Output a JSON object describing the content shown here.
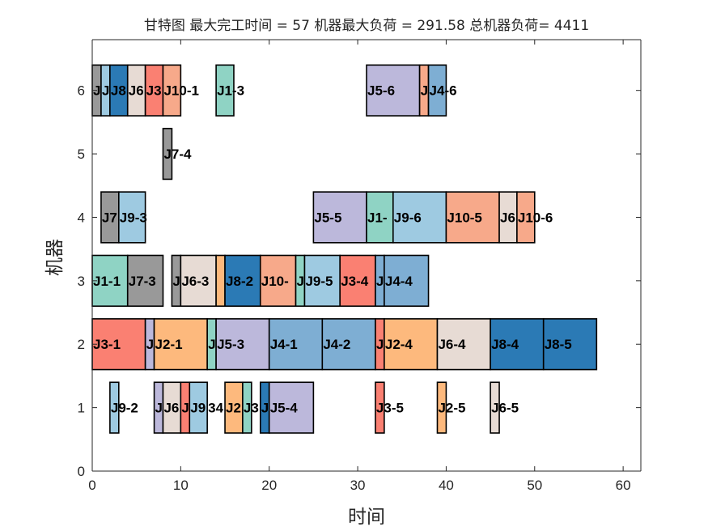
{
  "chart_data": {
    "type": "gantt",
    "title": "甘特图 最大完工时间 = 57 机器最大负荷 = 291.58 总机器负荷= 4411",
    "xlabel": "时间",
    "ylabel": "机器",
    "xlim": [
      0,
      62
    ],
    "ylim": [
      0,
      6.8
    ],
    "xticks": [
      "0",
      "10",
      "20",
      "30",
      "40",
      "50",
      "60"
    ],
    "yticks": [
      "0",
      "1",
      "2",
      "3",
      "4",
      "5",
      "6"
    ],
    "palette": {
      "J1": "#8fd3c4",
      "J2": "#fdb97d",
      "J3": "#fa8072",
      "J4": "#7eaed3",
      "J5": "#bcb8db",
      "J6": "#e7dbd4",
      "J7": "#999999",
      "J8": "#2b7ab5",
      "J9": "#9ecae1",
      "J10": "#f7a98a"
    },
    "tasks": [
      {
        "m": 6,
        "s": 0,
        "e": 1,
        "job": "J7",
        "label": "J"
      },
      {
        "m": 6,
        "s": 1,
        "e": 2,
        "job": "J9",
        "label": "J"
      },
      {
        "m": 6,
        "s": 2,
        "e": 4,
        "job": "J8",
        "label": "J8"
      },
      {
        "m": 6,
        "s": 4,
        "e": 6,
        "job": "J6",
        "label": "J6"
      },
      {
        "m": 6,
        "s": 6,
        "e": 8,
        "job": "J3",
        "label": "J3"
      },
      {
        "m": 6,
        "s": 8,
        "e": 10,
        "job": "J10",
        "label": "J10-1"
      },
      {
        "m": 6,
        "s": 14,
        "e": 16,
        "job": "J1",
        "label": "J1-3"
      },
      {
        "m": 6,
        "s": 31,
        "e": 37,
        "job": "J5",
        "label": "J5-6"
      },
      {
        "m": 6,
        "s": 37,
        "e": 38,
        "job": "J10",
        "label": "J"
      },
      {
        "m": 6,
        "s": 38,
        "e": 40,
        "job": "J4",
        "label": "J4-6"
      },
      {
        "m": 5,
        "s": 8,
        "e": 9,
        "job": "J7",
        "label": "J7-4"
      },
      {
        "m": 4,
        "s": 1,
        "e": 3,
        "job": "J7",
        "label": "J7"
      },
      {
        "m": 4,
        "s": 3,
        "e": 6,
        "job": "J9",
        "label": "J9-3"
      },
      {
        "m": 4,
        "s": 25,
        "e": 31,
        "job": "J5",
        "label": "J5-5"
      },
      {
        "m": 4,
        "s": 31,
        "e": 34,
        "job": "J1",
        "label": "J1-"
      },
      {
        "m": 4,
        "s": 34,
        "e": 40,
        "job": "J9",
        "label": "J9-6"
      },
      {
        "m": 4,
        "s": 40,
        "e": 46,
        "job": "J10",
        "label": "J10-5"
      },
      {
        "m": 4,
        "s": 46,
        "e": 48,
        "job": "J6",
        "label": "J6"
      },
      {
        "m": 4,
        "s": 48,
        "e": 50,
        "job": "J10",
        "label": "J10-6"
      },
      {
        "m": 3,
        "s": 0,
        "e": 4,
        "job": "J1",
        "label": "J1-1"
      },
      {
        "m": 3,
        "s": 4,
        "e": 8,
        "job": "J7",
        "label": "J7-3"
      },
      {
        "m": 3,
        "s": 9,
        "e": 10,
        "job": "J7",
        "label": "J"
      },
      {
        "m": 3,
        "s": 10,
        "e": 14,
        "job": "J6",
        "label": "J6-3"
      },
      {
        "m": 3,
        "s": 14,
        "e": 15,
        "job": "J2",
        "label": ""
      },
      {
        "m": 3,
        "s": 15,
        "e": 19,
        "job": "J8",
        "label": "J8-2"
      },
      {
        "m": 3,
        "s": 19,
        "e": 23,
        "job": "J10",
        "label": "J10-"
      },
      {
        "m": 3,
        "s": 23,
        "e": 24,
        "job": "J1",
        "label": "J"
      },
      {
        "m": 3,
        "s": 24,
        "e": 28,
        "job": "J9",
        "label": "J9-5"
      },
      {
        "m": 3,
        "s": 28,
        "e": 32,
        "job": "J3",
        "label": "J3-4"
      },
      {
        "m": 3,
        "s": 32,
        "e": 33,
        "job": "J4",
        "label": "J"
      },
      {
        "m": 3,
        "s": 33,
        "e": 38,
        "job": "J4",
        "label": "J4-4"
      },
      {
        "m": 2,
        "s": 0,
        "e": 6,
        "job": "J3",
        "label": "J3-1"
      },
      {
        "m": 2,
        "s": 6,
        "e": 7,
        "job": "J5",
        "label": "J"
      },
      {
        "m": 2,
        "s": 7,
        "e": 13,
        "job": "J2",
        "label": "J2-1"
      },
      {
        "m": 2,
        "s": 13,
        "e": 14,
        "job": "J1",
        "label": "J"
      },
      {
        "m": 2,
        "s": 14,
        "e": 20,
        "job": "J5",
        "label": "J5-3"
      },
      {
        "m": 2,
        "s": 20,
        "e": 26,
        "job": "J4",
        "label": "J4-1"
      },
      {
        "m": 2,
        "s": 26,
        "e": 32,
        "job": "J4",
        "label": "J4-2"
      },
      {
        "m": 2,
        "s": 32,
        "e": 33,
        "job": "J3",
        "label": "J"
      },
      {
        "m": 2,
        "s": 33,
        "e": 39,
        "job": "J2",
        "label": "J2-4"
      },
      {
        "m": 2,
        "s": 39,
        "e": 45,
        "job": "J6",
        "label": "J6-4"
      },
      {
        "m": 2,
        "s": 45,
        "e": 51,
        "job": "J8",
        "label": "J8-4"
      },
      {
        "m": 2,
        "s": 51,
        "e": 57,
        "job": "J8",
        "label": "J8-5"
      },
      {
        "m": 1,
        "s": 2,
        "e": 3,
        "job": "J9",
        "label": "J9-2"
      },
      {
        "m": 1,
        "s": 7,
        "e": 8,
        "job": "J5",
        "label": "J"
      },
      {
        "m": 1,
        "s": 8,
        "e": 10,
        "job": "J6",
        "label": "J6"
      },
      {
        "m": 1,
        "s": 10,
        "e": 11,
        "job": "J3",
        "label": "J"
      },
      {
        "m": 1,
        "s": 11,
        "e": 13,
        "job": "J9",
        "label": "J9"
      },
      {
        "m": 1,
        "s": 13,
        "e": 13,
        "job": "J9",
        "label": "34"
      },
      {
        "m": 1,
        "s": 15,
        "e": 17,
        "job": "J2",
        "label": "J2"
      },
      {
        "m": 1,
        "s": 17,
        "e": 18,
        "job": "J1",
        "label": "J3"
      },
      {
        "m": 1,
        "s": 19,
        "e": 20,
        "job": "J8",
        "label": "J"
      },
      {
        "m": 1,
        "s": 20,
        "e": 25,
        "job": "J5",
        "label": "J5-4"
      },
      {
        "m": 1,
        "s": 32,
        "e": 33,
        "job": "J3",
        "label": "J3-5"
      },
      {
        "m": 1,
        "s": 39,
        "e": 40,
        "job": "J2",
        "label": "J2-5"
      },
      {
        "m": 1,
        "s": 45,
        "e": 46,
        "job": "J6",
        "label": "J6-5"
      }
    ]
  }
}
